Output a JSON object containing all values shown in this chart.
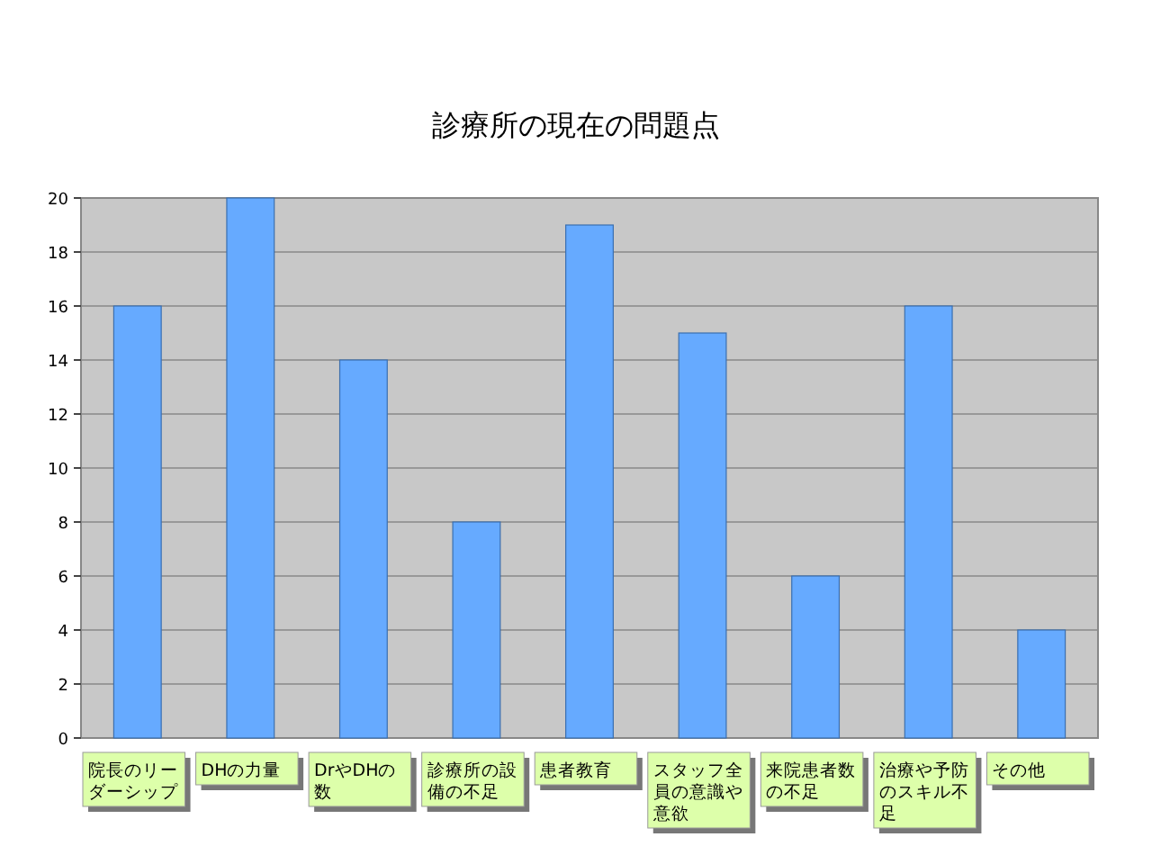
{
  "chart_data": {
    "type": "bar",
    "title": "診療所の現在の問題点",
    "categories": [
      "院長のリーダーシップ",
      "DHの力量",
      "DrやDHの数",
      "診療所の設備の不足",
      "患者教育",
      "スタッフ全員の意識や意欲",
      "来院患者数の不足",
      "治療や予防のスキル不足",
      "その他"
    ],
    "values": [
      16,
      20,
      14,
      8,
      19,
      15,
      6,
      16,
      4
    ],
    "color": "#66aaff",
    "ylim": [
      0,
      20
    ],
    "yticks": [
      0,
      2,
      4,
      6,
      8,
      10,
      12,
      14,
      16,
      18,
      20
    ],
    "grid": "y"
  }
}
